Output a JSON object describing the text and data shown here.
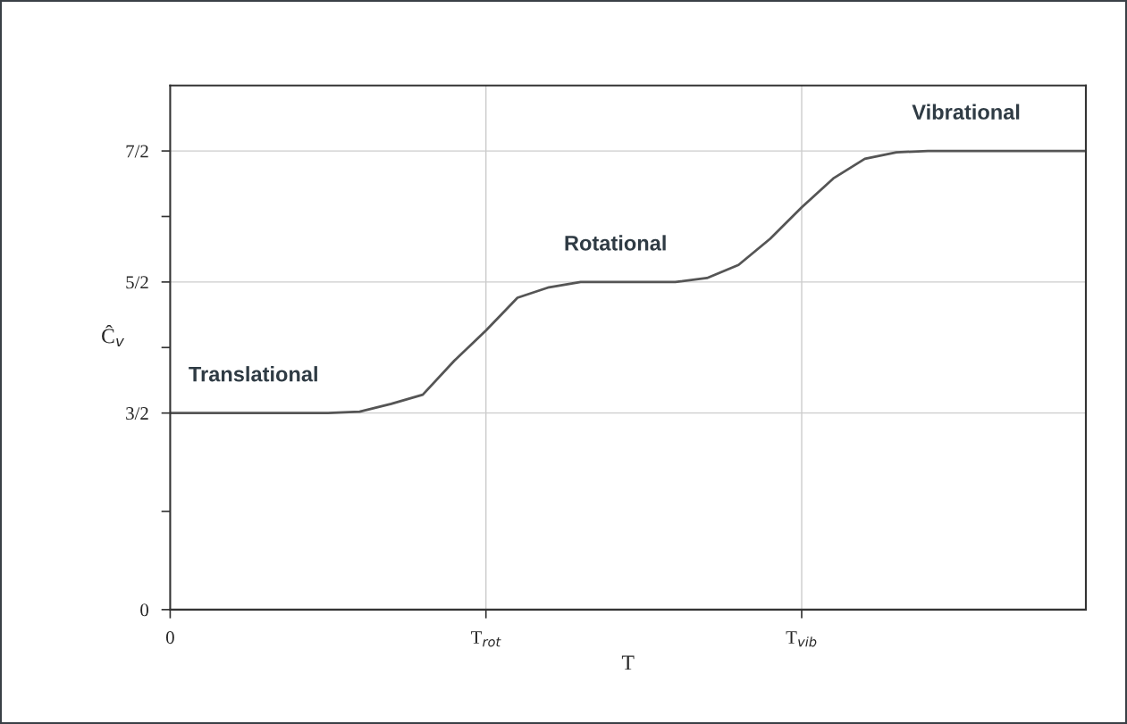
{
  "chart_data": {
    "type": "line",
    "xlabel": "T",
    "ylabel": "Ĉ$_{v}$",
    "categories": [
      "0",
      null,
      null,
      null,
      null,
      null,
      null,
      null,
      null,
      null,
      "T$_{rot}$",
      null,
      null,
      null,
      null,
      null,
      null,
      null,
      null,
      null,
      "T$_{vib}$",
      null,
      null,
      null,
      null,
      null,
      null,
      null,
      null,
      null
    ],
    "series": [
      {
        "color": "#555555",
        "values": [
          1.5,
          1.5,
          1.5,
          1.5,
          1.5,
          1.5,
          1.51,
          1.57,
          1.64,
          1.9,
          2.13,
          2.38,
          2.46,
          2.5,
          2.5,
          2.5,
          2.5,
          2.53,
          2.63,
          2.83,
          3.07,
          3.29,
          3.44,
          3.49,
          3.5,
          3.5,
          3.5,
          3.5,
          3.5,
          3.5
        ]
      }
    ],
    "ylim": [
      0,
      4
    ],
    "yticks": [
      0,
      {
        "value": 0.75,
        "label": null
      },
      {
        "value": 1.5,
        "label": "3/2"
      },
      {
        "value": 2,
        "label": null
      },
      {
        "value": 2.5,
        "label": "5/2"
      },
      {
        "value": 3,
        "label": null
      },
      {
        "value": 3.5,
        "label": "7/2"
      }
    ],
    "grid": true,
    "annotations": [
      "Translational",
      "Rotational",
      "Vibrational"
    ]
  }
}
